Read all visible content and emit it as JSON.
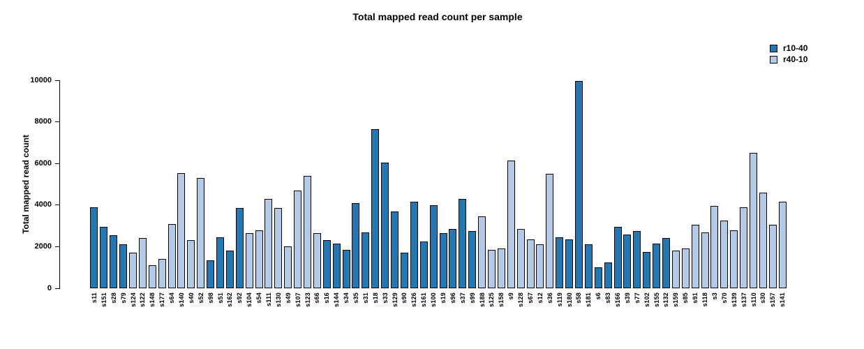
{
  "chart_data": {
    "type": "bar",
    "title": "Total mapped read count per sample",
    "xlabel": "",
    "ylabel": "Total mapped read count",
    "ylim": [
      0,
      10000
    ],
    "yticks": [
      0,
      2000,
      4000,
      6000,
      8000,
      10000
    ],
    "grid": false,
    "legend_position": "top-right",
    "bar_border_color": "#000000",
    "legend": [
      {
        "label": "r10-40",
        "color": "#2178b4"
      },
      {
        "label": "r40-10",
        "color": "#b2c9e7"
      }
    ],
    "samples": [
      {
        "label": "s11",
        "series": "r10-40",
        "value": 3900
      },
      {
        "label": "s151",
        "series": "r10-40",
        "value": 2950
      },
      {
        "label": "s28",
        "series": "r10-40",
        "value": 2550
      },
      {
        "label": "s79",
        "series": "r10-40",
        "value": 2100
      },
      {
        "label": "s124",
        "series": "r40-10",
        "value": 1700
      },
      {
        "label": "s122",
        "series": "r40-10",
        "value": 2400
      },
      {
        "label": "s148",
        "series": "r40-10",
        "value": 1100
      },
      {
        "label": "s177",
        "series": "r40-10",
        "value": 1400
      },
      {
        "label": "s64",
        "series": "r40-10",
        "value": 3100
      },
      {
        "label": "s140",
        "series": "r40-10",
        "value": 5550
      },
      {
        "label": "s40",
        "series": "r40-10",
        "value": 2300
      },
      {
        "label": "s52",
        "series": "r40-10",
        "value": 5300
      },
      {
        "label": "s98",
        "series": "r10-40",
        "value": 1350
      },
      {
        "label": "s51",
        "series": "r10-40",
        "value": 2450
      },
      {
        "label": "s162",
        "series": "r10-40",
        "value": 1800
      },
      {
        "label": "s92",
        "series": "r10-40",
        "value": 3850
      },
      {
        "label": "s104",
        "series": "r40-10",
        "value": 2650
      },
      {
        "label": "s54",
        "series": "r40-10",
        "value": 2800
      },
      {
        "label": "s111",
        "series": "r40-10",
        "value": 4300
      },
      {
        "label": "s130",
        "series": "r40-10",
        "value": 3850
      },
      {
        "label": "s49",
        "series": "r40-10",
        "value": 2000
      },
      {
        "label": "s107",
        "series": "r40-10",
        "value": 4700
      },
      {
        "label": "s123",
        "series": "r40-10",
        "value": 5400
      },
      {
        "label": "s66",
        "series": "r40-10",
        "value": 2650
      },
      {
        "label": "s16",
        "series": "r10-40",
        "value": 2300
      },
      {
        "label": "s144",
        "series": "r10-40",
        "value": 2150
      },
      {
        "label": "s34",
        "series": "r10-40",
        "value": 1850
      },
      {
        "label": "s35",
        "series": "r10-40",
        "value": 4100
      },
      {
        "label": "s31",
        "series": "r10-40",
        "value": 2700
      },
      {
        "label": "s18",
        "series": "r10-40",
        "value": 7650
      },
      {
        "label": "s33",
        "series": "r10-40",
        "value": 6050
      },
      {
        "label": "s129",
        "series": "r10-40",
        "value": 3700
      },
      {
        "label": "s90",
        "series": "r10-40",
        "value": 1700
      },
      {
        "label": "s126",
        "series": "r10-40",
        "value": 4150
      },
      {
        "label": "s161",
        "series": "r10-40",
        "value": 2250
      },
      {
        "label": "s100",
        "series": "r10-40",
        "value": 4000
      },
      {
        "label": "s19",
        "series": "r10-40",
        "value": 2650
      },
      {
        "label": "s96",
        "series": "r10-40",
        "value": 2850
      },
      {
        "label": "s37",
        "series": "r10-40",
        "value": 4300
      },
      {
        "label": "s99",
        "series": "r10-40",
        "value": 2750
      },
      {
        "label": "s188",
        "series": "r40-10",
        "value": 3450
      },
      {
        "label": "s125",
        "series": "r40-10",
        "value": 1850
      },
      {
        "label": "s158",
        "series": "r40-10",
        "value": 1900
      },
      {
        "label": "s9",
        "series": "r40-10",
        "value": 6150
      },
      {
        "label": "s128",
        "series": "r40-10",
        "value": 2850
      },
      {
        "label": "s67",
        "series": "r40-10",
        "value": 2350
      },
      {
        "label": "s12",
        "series": "r40-10",
        "value": 2100
      },
      {
        "label": "s36",
        "series": "r40-10",
        "value": 5500
      },
      {
        "label": "s119",
        "series": "r10-40",
        "value": 2450
      },
      {
        "label": "s180",
        "series": "r10-40",
        "value": 2350
      },
      {
        "label": "s58",
        "series": "r10-40",
        "value": 9950
      },
      {
        "label": "s181",
        "series": "r10-40",
        "value": 2100
      },
      {
        "label": "s6",
        "series": "r10-40",
        "value": 1000
      },
      {
        "label": "s83",
        "series": "r10-40",
        "value": 1250
      },
      {
        "label": "s166",
        "series": "r10-40",
        "value": 2950
      },
      {
        "label": "s39",
        "series": "r10-40",
        "value": 2600
      },
      {
        "label": "s77",
        "series": "r10-40",
        "value": 2750
      },
      {
        "label": "s102",
        "series": "r10-40",
        "value": 1750
      },
      {
        "label": "s155",
        "series": "r10-40",
        "value": 2150
      },
      {
        "label": "s132",
        "series": "r10-40",
        "value": 2400
      },
      {
        "label": "s159",
        "series": "r40-10",
        "value": 1800
      },
      {
        "label": "s85",
        "series": "r40-10",
        "value": 1900
      },
      {
        "label": "s91",
        "series": "r40-10",
        "value": 3050
      },
      {
        "label": "s118",
        "series": "r40-10",
        "value": 2700
      },
      {
        "label": "s3",
        "series": "r40-10",
        "value": 3950
      },
      {
        "label": "s70",
        "series": "r40-10",
        "value": 3250
      },
      {
        "label": "s139",
        "series": "r40-10",
        "value": 2800
      },
      {
        "label": "s137",
        "series": "r40-10",
        "value": 3900
      },
      {
        "label": "s110",
        "series": "r40-10",
        "value": 6500
      },
      {
        "label": "s30",
        "series": "r40-10",
        "value": 4600
      },
      {
        "label": "s157",
        "series": "r40-10",
        "value": 3050
      },
      {
        "label": "s141",
        "series": "r40-10",
        "value": 4150
      }
    ]
  }
}
